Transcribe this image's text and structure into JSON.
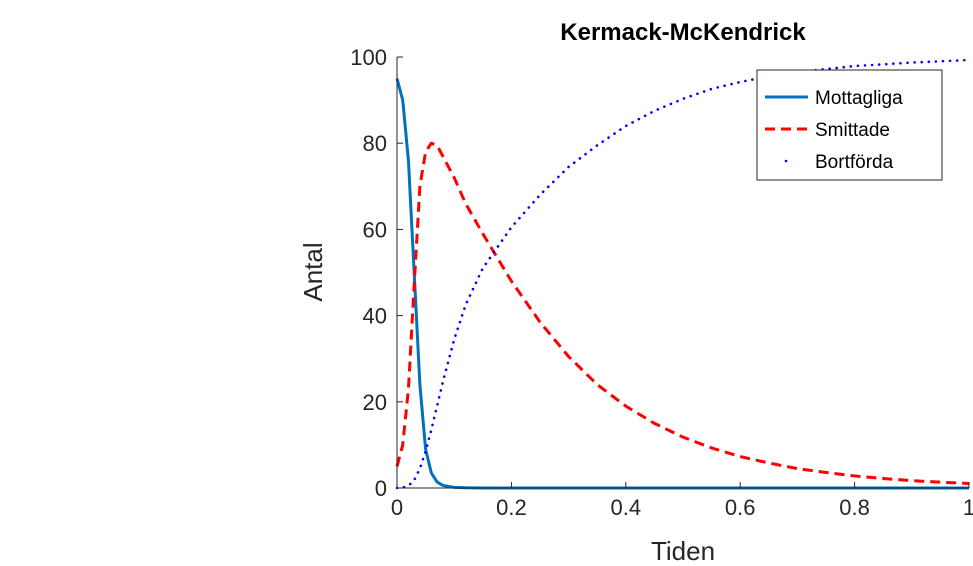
{
  "chart_data": {
    "type": "line",
    "title": "Kermack-McKendrick",
    "xlabel": "Tiden",
    "ylabel": "Antal",
    "xlim": [
      0,
      1
    ],
    "ylim": [
      0,
      100
    ],
    "xticks": [
      "0",
      "0.2",
      "0.4",
      "0.6",
      "0.8",
      "1"
    ],
    "yticks": [
      "0",
      "20",
      "40",
      "60",
      "80",
      "100"
    ],
    "grid": false,
    "legend_position": "top-right",
    "x": [
      0,
      0.01,
      0.02,
      0.03,
      0.04,
      0.05,
      0.06,
      0.07,
      0.08,
      0.1,
      0.12,
      0.15,
      0.2,
      0.25,
      0.3,
      0.35,
      0.4,
      0.45,
      0.5,
      0.55,
      0.6,
      0.65,
      0.7,
      0.75,
      0.8,
      0.85,
      0.9,
      0.95,
      1.0
    ],
    "series": [
      {
        "name": "Mottagliga",
        "color": "#0072BD",
        "style": "solid",
        "values": [
          95,
          90,
          76,
          50,
          24,
          9,
          3.5,
          1.4,
          0.6,
          0.15,
          0.05,
          0.01,
          0,
          0,
          0,
          0,
          0,
          0,
          0,
          0,
          0,
          0,
          0,
          0,
          0,
          0,
          0,
          0,
          0
        ]
      },
      {
        "name": "Smittade",
        "color": "#FF0000",
        "style": "dashed",
        "values": [
          5,
          10,
          23,
          47,
          70,
          78,
          80,
          79.5,
          77,
          72,
          66,
          59,
          48,
          38.5,
          30.5,
          24,
          19,
          15,
          11.8,
          9.3,
          7.3,
          5.8,
          4.5,
          3.6,
          2.8,
          2.2,
          1.7,
          1.35,
          1.05
        ]
      },
      {
        "name": "Bortförda",
        "color": "#0000FF",
        "style": "dotted",
        "values": [
          0,
          0.1,
          0.5,
          1.8,
          4.5,
          8.5,
          13.5,
          19,
          24.5,
          34.5,
          42.5,
          51,
          60.5,
          68,
          74.5,
          79.5,
          84,
          87.5,
          90.3,
          92.6,
          94.2,
          95.5,
          96.5,
          97.2,
          97.9,
          98.3,
          98.7,
          99,
          99.3
        ]
      }
    ]
  }
}
